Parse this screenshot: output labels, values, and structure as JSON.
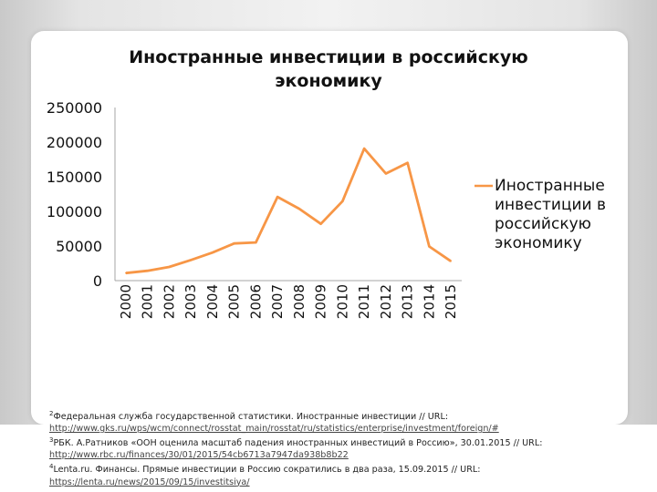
{
  "chart_data": {
    "type": "line",
    "title_lines": [
      "Иностранные инвестиции в российскую",
      "экономику"
    ],
    "categories": [
      "2000",
      "2001",
      "2002",
      "2003",
      "2004",
      "2005",
      "2006",
      "2007",
      "2008",
      "2009",
      "2010",
      "2011",
      "2012",
      "2013",
      "2014",
      "2015"
    ],
    "series": [
      {
        "name": "Иностранные инвестиции в российскую экономику",
        "values": [
          10958,
          14258,
          19780,
          29699,
          40509,
          53651,
          55109,
          120941,
          103769,
          81927,
          114746,
          190643,
          154570,
          170180,
          49400,
          28000
        ],
        "color": "#f79646"
      }
    ],
    "y_ticks": [
      "250000",
      "200000",
      "150000",
      "100000",
      "50000",
      "0"
    ],
    "ylim": [
      0,
      250000
    ],
    "grid": false,
    "legend_position": "right",
    "legend_lines": [
      "Иностранные",
      "инвестиции в",
      "российскую",
      "экономику"
    ]
  },
  "footnotes": [
    {
      "num": "2",
      "text": "Федеральная служба государственной статистики. Иностранные инвестиции // URL:",
      "link": "http://www.gks.ru/wps/wcm/connect/rosstat_main/rosstat/ru/statistics/enterprise/investment/foreign/#"
    },
    {
      "num": "3",
      "text": "РБК. А.Ратников «ООН оценила масштаб падения иностранных инвестиций в Россию», 30.01.2015 // URL:",
      "link": "http://www.rbc.ru/finances/30/01/2015/54cb6713a7947da938b8b22"
    },
    {
      "num": "4",
      "text": "Lenta.ru. Финансы. Прямые инвестиции в Россию сократились в два раза, 15.09.2015 // URL:",
      "link": "https://lenta.ru/news/2015/09/15/investitsiya/"
    }
  ]
}
